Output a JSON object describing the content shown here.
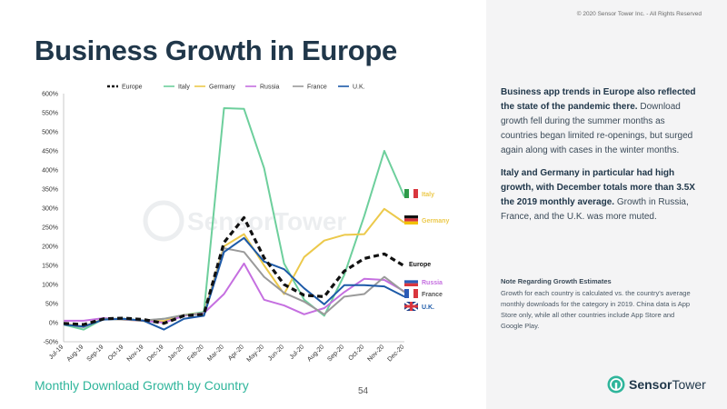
{
  "header": {
    "title": "Business Growth in Europe",
    "copyright": "© 2020 Sensor Tower Inc. - All Rights Reserved"
  },
  "footer": {
    "subtitle": "Monthly Download Growth by Country",
    "page_number": "54",
    "brand_bold": "Sensor",
    "brand_light": "Tower"
  },
  "side_panel": {
    "p1_bold": "Business app trends in Europe also reflected the state of the pandemic there.",
    "p1_text": " Download growth fell during the summer months as countries began limited re-openings, but surged again along with cases in the winter months.",
    "p2_bold": "Italy and Germany in particular had high growth, with December totals more than 3.5X the 2019 monthly average.",
    "p2_text": " Growth in Russia, France, and the U.K. was more muted.",
    "note_title": "Note Regarding Growth Estimates",
    "note_text": "Growth for each country is calculated vs. the country's average monthly downloads for the category in 2019. China data is App Store only, while all other countries include App Store and Google Play."
  },
  "chart_data": {
    "type": "line",
    "categories": [
      "Jul-19",
      "Aug-19",
      "Sep-19",
      "Oct-19",
      "Nov-19",
      "Dec-19",
      "Jan-20",
      "Feb-20",
      "Mar-20",
      "Apr-20",
      "May-20",
      "Jun-20",
      "Jul-20",
      "Aug-20",
      "Sep-20",
      "Oct-20",
      "Nov-20",
      "Dec-20"
    ],
    "y_ticks": [
      "-50%",
      "0%",
      "50%",
      "100%",
      "150%",
      "200%",
      "250%",
      "300%",
      "350%",
      "400%",
      "450%",
      "500%",
      "550%",
      "600%"
    ],
    "ylim": [
      -50,
      600
    ],
    "ylabel": "",
    "xlabel": "",
    "legend_position": "top",
    "series": [
      {
        "name": "Europe",
        "color": "#111111",
        "dashed": true,
        "values": [
          -2,
          -5,
          10,
          12,
          8,
          -2,
          18,
          22,
          210,
          275,
          170,
          100,
          72,
          68,
          135,
          168,
          180,
          148
        ]
      },
      {
        "name": "Italy",
        "color": "#6dcf9c",
        "dashed": false,
        "values": [
          -5,
          -18,
          10,
          10,
          5,
          10,
          20,
          28,
          562,
          560,
          405,
          155,
          60,
          18,
          125,
          280,
          450,
          330
        ]
      },
      {
        "name": "Germany",
        "color": "#ecc94b",
        "dashed": false,
        "values": [
          -3,
          -10,
          10,
          8,
          4,
          4,
          20,
          25,
          200,
          232,
          150,
          75,
          172,
          215,
          230,
          232,
          298,
          262
        ]
      },
      {
        "name": "Russia",
        "color": "#c56fe0",
        "dashed": false,
        "values": [
          5,
          5,
          12,
          8,
          5,
          0,
          18,
          25,
          75,
          155,
          60,
          45,
          22,
          38,
          80,
          115,
          112,
          82
        ]
      },
      {
        "name": "France",
        "color": "#9a9a9a",
        "dashed": false,
        "values": [
          -4,
          -12,
          10,
          8,
          6,
          10,
          20,
          22,
          195,
          185,
          120,
          78,
          55,
          22,
          68,
          75,
          120,
          80
        ]
      },
      {
        "name": "U.K.",
        "color": "#1d5aa8",
        "dashed": false,
        "values": [
          -5,
          -10,
          8,
          10,
          5,
          -18,
          10,
          18,
          185,
          222,
          160,
          140,
          90,
          48,
          98,
          98,
          95,
          68
        ]
      }
    ],
    "end_labels": [
      {
        "name": "Italy",
        "color": "#ecc94b"
      },
      {
        "name": "Germany",
        "color": "#ecc94b"
      },
      {
        "name": "Europe",
        "color": "#111111"
      },
      {
        "name": "Russia",
        "color": "#c56fe0"
      },
      {
        "name": "France",
        "color": "#555555"
      },
      {
        "name": "U.K.",
        "color": "#1d5aa8"
      }
    ],
    "watermark_bold": "Sensor",
    "watermark_light": "Tower"
  }
}
